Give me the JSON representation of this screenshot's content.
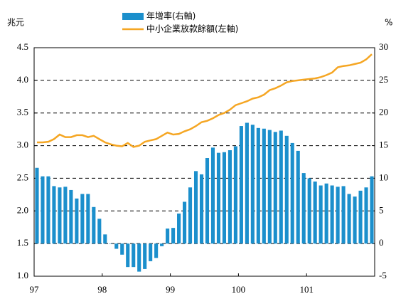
{
  "chart_data": {
    "type": "bar_line",
    "ylabel": "兆元",
    "y2label": "%",
    "categories": [
      "97",
      null,
      null,
      null,
      null,
      null,
      null,
      null,
      null,
      null,
      null,
      null,
      "98",
      null,
      null,
      null,
      null,
      null,
      null,
      null,
      null,
      null,
      null,
      null,
      "99",
      null,
      null,
      null,
      null,
      null,
      null,
      null,
      null,
      null,
      null,
      null,
      "100",
      null,
      null,
      null,
      null,
      null,
      null,
      null,
      null,
      null,
      null,
      null,
      "101",
      null,
      null,
      null,
      null,
      null,
      null,
      null,
      null,
      null,
      null,
      null
    ],
    "series": [
      {
        "name": "年增率(右軸)",
        "kind": "bar",
        "axis": "y2",
        "color": "#1b8fcc",
        "values": [
          11.6,
          10.3,
          10.3,
          8.8,
          8.6,
          8.7,
          8.2,
          6.9,
          7.6,
          7.6,
          5.6,
          3.8,
          1.4,
          0.0,
          -0.8,
          -1.7,
          -3.6,
          -3.6,
          -4.3,
          -3.9,
          -2.7,
          -2.2,
          -0.4,
          2.3,
          2.4,
          4.6,
          6.4,
          8.6,
          11.1,
          10.6,
          13.1,
          14.7,
          13.9,
          14.0,
          14.3,
          14.9,
          18.0,
          18.5,
          18.2,
          17.7,
          17.6,
          17.4,
          17.1,
          17.3,
          16.5,
          15.4,
          14.2,
          10.8,
          10.0,
          9.5,
          8.9,
          9.2,
          8.9,
          8.7,
          8.8,
          7.6,
          7.2,
          8.1,
          8.6,
          10.3
        ]
      },
      {
        "name": "中小企業放款餘額(左軸)",
        "kind": "line",
        "color": "#f5a623",
        "values": [
          3.05,
          3.05,
          3.06,
          3.1,
          3.17,
          3.13,
          3.13,
          3.16,
          3.16,
          3.13,
          3.15,
          3.1,
          3.05,
          3.02,
          3.0,
          2.99,
          3.04,
          2.98,
          3.0,
          3.06,
          3.08,
          3.1,
          3.15,
          3.2,
          3.17,
          3.18,
          3.22,
          3.25,
          3.3,
          3.36,
          3.38,
          3.42,
          3.47,
          3.5,
          3.55,
          3.62,
          3.65,
          3.68,
          3.72,
          3.74,
          3.78,
          3.85,
          3.88,
          3.92,
          3.97,
          3.99,
          4.0,
          4.01,
          4.02,
          4.03,
          4.05,
          4.08,
          4.12,
          4.2,
          4.22,
          4.23,
          4.25,
          4.27,
          4.32,
          4.4
        ]
      }
    ],
    "ylim": [
      1.0,
      4.5
    ],
    "yticks": [
      {
        "value": 1.0,
        "label": "1.0"
      },
      1.5,
      {
        "value": 2.0,
        "label": "2.0"
      },
      2.5,
      {
        "value": 3.0,
        "label": "3.0"
      },
      3.5,
      {
        "value": 4.0,
        "label": "4.0"
      },
      4.5
    ],
    "y2lim": [
      -5,
      30
    ],
    "y2ticks": [
      -5,
      0,
      5,
      10,
      15,
      20,
      25,
      30
    ],
    "grid": true
  }
}
